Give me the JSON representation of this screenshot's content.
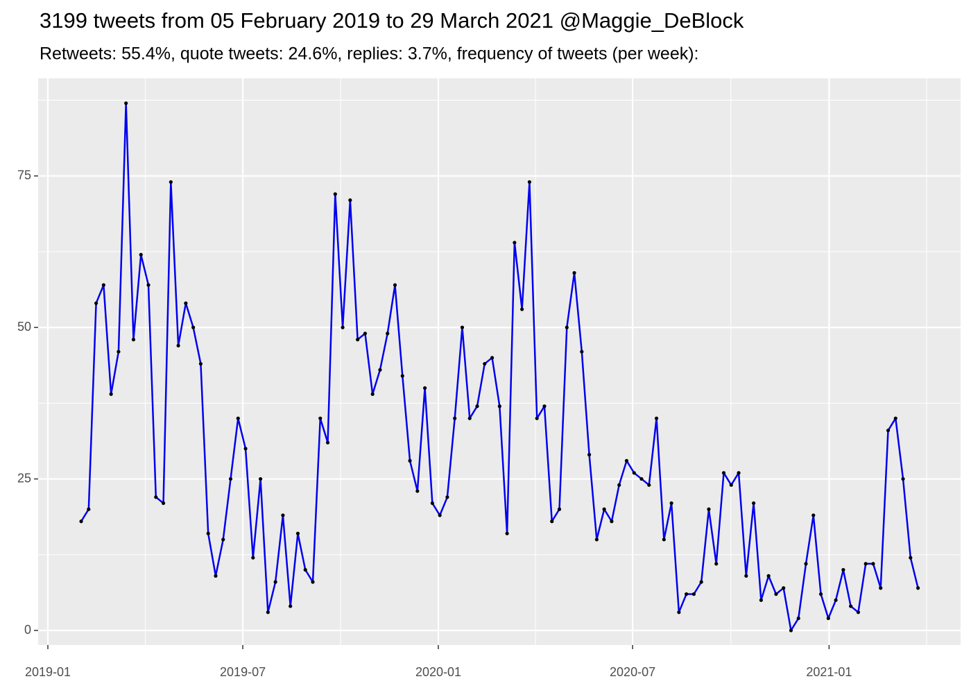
{
  "chart_data": {
    "type": "line",
    "title": "3199 tweets from 05 February 2019 to 29 March 2021 @Maggie_DeBlock",
    "subtitle": "Retweets: 55.4%, quote tweets: 24.6%, replies: 3.7%, frequency of tweets (per week):",
    "categories": [
      null,
      null,
      null,
      null,
      null,
      null,
      null,
      null,
      null,
      null,
      null,
      null,
      null,
      null,
      null,
      null,
      null,
      null,
      null,
      null,
      null,
      null,
      null,
      null,
      null,
      null,
      null,
      null,
      null,
      null,
      null,
      null,
      null,
      null,
      null,
      null,
      null,
      null,
      null,
      null,
      null,
      null,
      null,
      null,
      null,
      null,
      null,
      null,
      null,
      null,
      null,
      null,
      null,
      null,
      null,
      null,
      null,
      null,
      null,
      null,
      null,
      null,
      null,
      null,
      null,
      null,
      null,
      null,
      null,
      null,
      null,
      null,
      null,
      null,
      null,
      null,
      null,
      null,
      null,
      null,
      null,
      null,
      null,
      null,
      null,
      null,
      null,
      null,
      null,
      null,
      null,
      null,
      null,
      null,
      null,
      null,
      null,
      null,
      null,
      null,
      null,
      null,
      null,
      null,
      null,
      null,
      null,
      null,
      null,
      null,
      null,
      null,
      null
    ],
    "values": [
      18,
      20,
      54,
      57,
      39,
      46,
      87,
      48,
      62,
      57,
      22,
      21,
      74,
      47,
      54,
      50,
      44,
      16,
      9,
      15,
      25,
      35,
      30,
      12,
      25,
      3,
      8,
      19,
      4,
      16,
      10,
      8,
      35,
      31,
      72,
      50,
      71,
      48,
      49,
      39,
      43,
      49,
      57,
      42,
      28,
      23,
      40,
      21,
      19,
      22,
      35,
      50,
      35,
      37,
      44,
      45,
      37,
      16,
      64,
      53,
      74,
      35,
      37,
      18,
      20,
      50,
      59,
      46,
      29,
      15,
      20,
      18,
      24,
      28,
      26,
      25,
      24,
      35,
      15,
      21,
      3,
      6,
      6,
      8,
      20,
      11,
      26,
      24,
      26,
      9,
      21,
      5,
      9,
      6,
      7,
      0,
      2,
      11,
      19,
      6,
      2,
      5,
      10,
      4,
      3,
      11,
      11,
      7,
      33,
      35,
      25,
      12,
      7
    ],
    "color": "#0000ee",
    "point_color": "#000000",
    "xlim": [
      -5.76,
      117.7
    ],
    "xticks": [
      {
        "value": -4.46,
        "label": "2019-01"
      },
      {
        "value": 21.63,
        "label": "2019-07"
      },
      {
        "value": 47.8,
        "label": "2020-01"
      },
      {
        "value": 73.8,
        "label": "2020-07"
      },
      {
        "value": 100.1,
        "label": "2021-01"
      }
    ],
    "ylim": [
      -2.4,
      91.1
    ],
    "yticks": [
      0,
      25,
      50,
      75
    ],
    "grid": true
  }
}
